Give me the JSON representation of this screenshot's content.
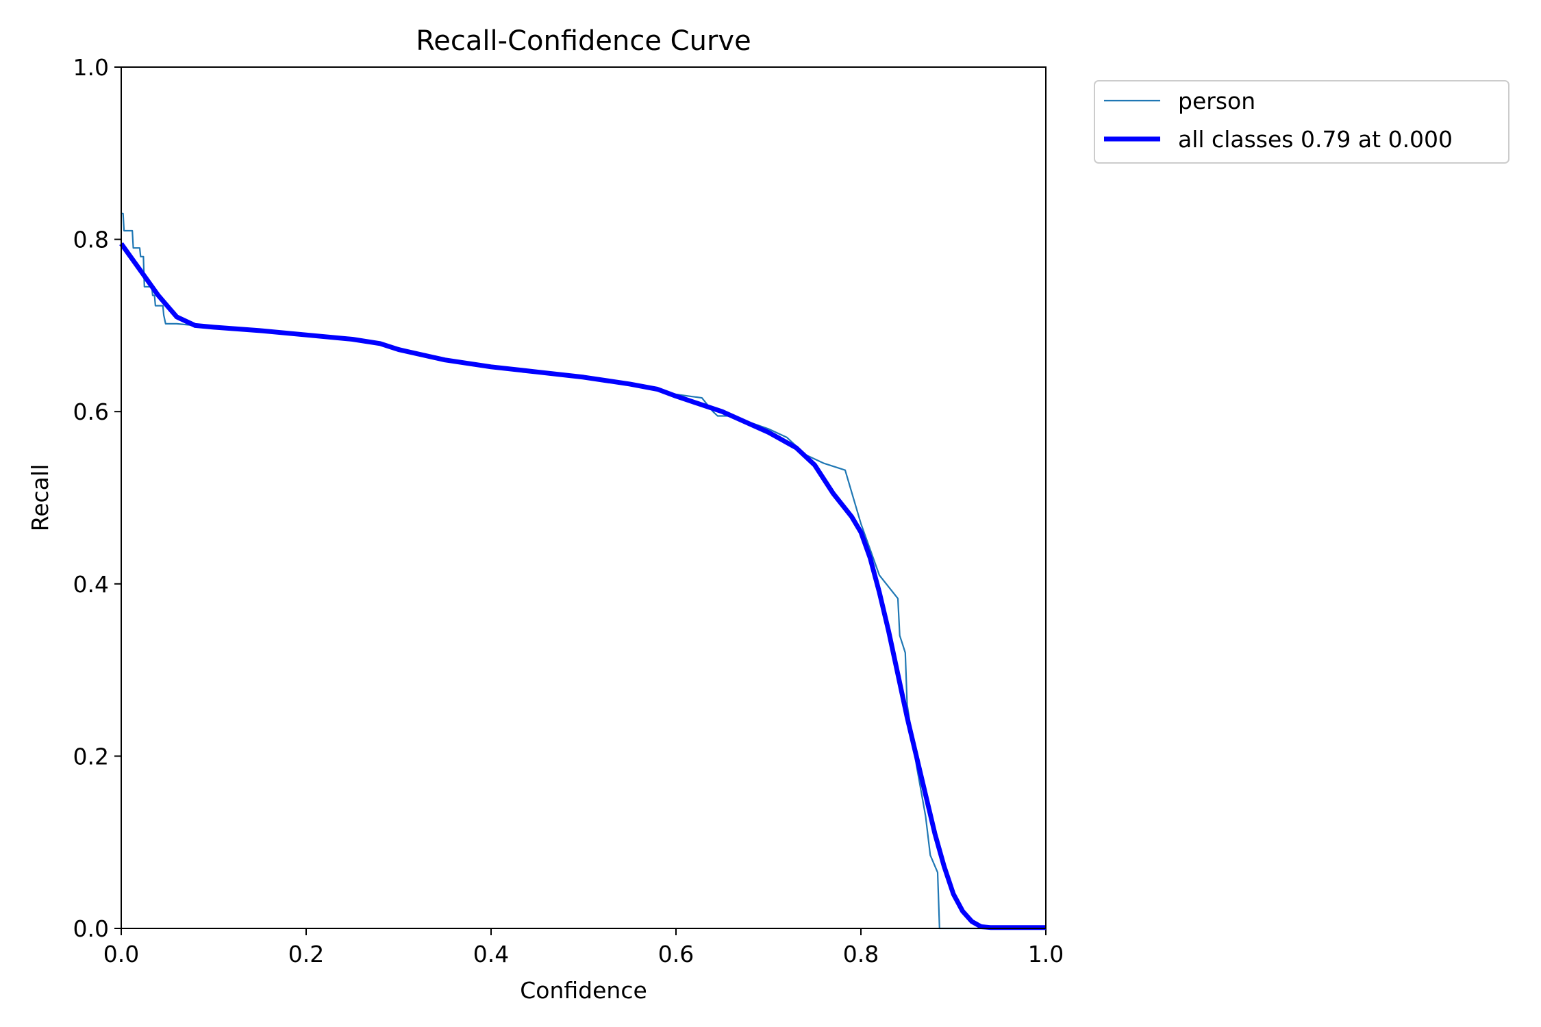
{
  "chart_data": {
    "type": "line",
    "title": "Recall-Confidence Curve",
    "xlabel": "Confidence",
    "ylabel": "Recall",
    "xlim": [
      0.0,
      1.0
    ],
    "ylim": [
      0.0,
      1.0
    ],
    "xticks": [
      "0.0",
      "0.2",
      "0.4",
      "0.6",
      "0.8",
      "1.0"
    ],
    "yticks": [
      "0.0",
      "0.2",
      "0.4",
      "0.6",
      "0.8",
      "1.0"
    ],
    "grid": false,
    "legend_position": "outside-top-right",
    "series": [
      {
        "name": "person",
        "color": "#1f77b4",
        "x": [
          0.0,
          0.002,
          0.003,
          0.004,
          0.012,
          0.013,
          0.02,
          0.021,
          0.024,
          0.025,
          0.033,
          0.034,
          0.036,
          0.037,
          0.045,
          0.046,
          0.048,
          0.05,
          0.06,
          0.08,
          0.1,
          0.15,
          0.2,
          0.25,
          0.28,
          0.3,
          0.35,
          0.4,
          0.45,
          0.5,
          0.55,
          0.58,
          0.6,
          0.628,
          0.64,
          0.645,
          0.66,
          0.7,
          0.72,
          0.74,
          0.76,
          0.783,
          0.8,
          0.82,
          0.84,
          0.842,
          0.845,
          0.848,
          0.85,
          0.86,
          0.87,
          0.875,
          0.883,
          0.885,
          0.9,
          0.95,
          1.0
        ],
        "y": [
          0.83,
          0.83,
          0.81,
          0.81,
          0.81,
          0.79,
          0.79,
          0.78,
          0.78,
          0.745,
          0.745,
          0.735,
          0.735,
          0.723,
          0.723,
          0.712,
          0.702,
          0.702,
          0.702,
          0.7,
          0.698,
          0.694,
          0.689,
          0.684,
          0.68,
          0.674,
          0.66,
          0.652,
          0.646,
          0.64,
          0.632,
          0.626,
          0.62,
          0.616,
          0.6,
          0.595,
          0.595,
          0.58,
          0.57,
          0.55,
          0.54,
          0.532,
          0.47,
          0.41,
          0.383,
          0.34,
          0.33,
          0.32,
          0.26,
          0.19,
          0.13,
          0.085,
          0.065,
          0.0,
          0.0,
          0.0,
          0.0
        ]
      },
      {
        "name": "all classes 0.79 at 0.000",
        "color": "#0000ff",
        "x": [
          0.0,
          0.02,
          0.04,
          0.06,
          0.08,
          0.1,
          0.15,
          0.2,
          0.25,
          0.28,
          0.3,
          0.35,
          0.4,
          0.45,
          0.5,
          0.55,
          0.58,
          0.6,
          0.65,
          0.7,
          0.73,
          0.75,
          0.77,
          0.79,
          0.8,
          0.81,
          0.82,
          0.83,
          0.84,
          0.85,
          0.86,
          0.87,
          0.88,
          0.89,
          0.9,
          0.91,
          0.92,
          0.93,
          0.94,
          1.0
        ],
        "y": [
          0.795,
          0.765,
          0.735,
          0.71,
          0.7,
          0.698,
          0.694,
          0.689,
          0.684,
          0.679,
          0.672,
          0.66,
          0.652,
          0.646,
          0.64,
          0.632,
          0.626,
          0.618,
          0.6,
          0.576,
          0.558,
          0.538,
          0.505,
          0.478,
          0.46,
          0.43,
          0.39,
          0.345,
          0.295,
          0.245,
          0.2,
          0.155,
          0.11,
          0.072,
          0.04,
          0.02,
          0.008,
          0.002,
          0.001,
          0.001
        ]
      }
    ]
  }
}
